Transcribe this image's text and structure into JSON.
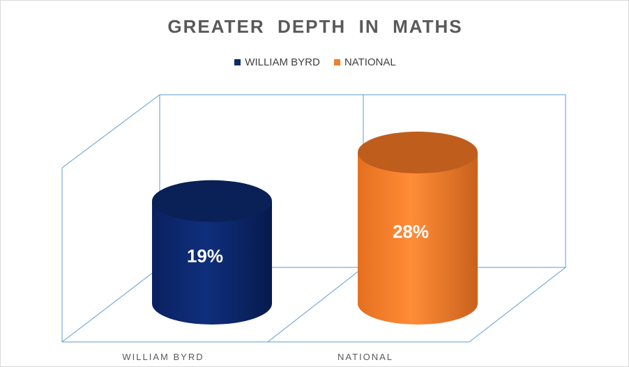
{
  "chart_data": {
    "type": "bar",
    "style": "3d-cylinder",
    "title": "GREATER  DEPTH  IN  MATHS",
    "categories": [
      "WILLIAM BYRD",
      "NATIONAL"
    ],
    "series": [
      {
        "name": "WILLIAM BYRD",
        "values": [
          19,
          null
        ],
        "color": "#0d2a6b"
      },
      {
        "name": "NATIONAL",
        "values": [
          null,
          28
        ],
        "color": "#f07f2c"
      }
    ],
    "data_labels": [
      "19%",
      "28%"
    ],
    "ylim": [
      0,
      30
    ],
    "legend_position": "top",
    "gridlines": false,
    "colors": {
      "frame_lines": "#5b9bd5",
      "title_text": "#595959",
      "label_text": "#595959"
    }
  }
}
